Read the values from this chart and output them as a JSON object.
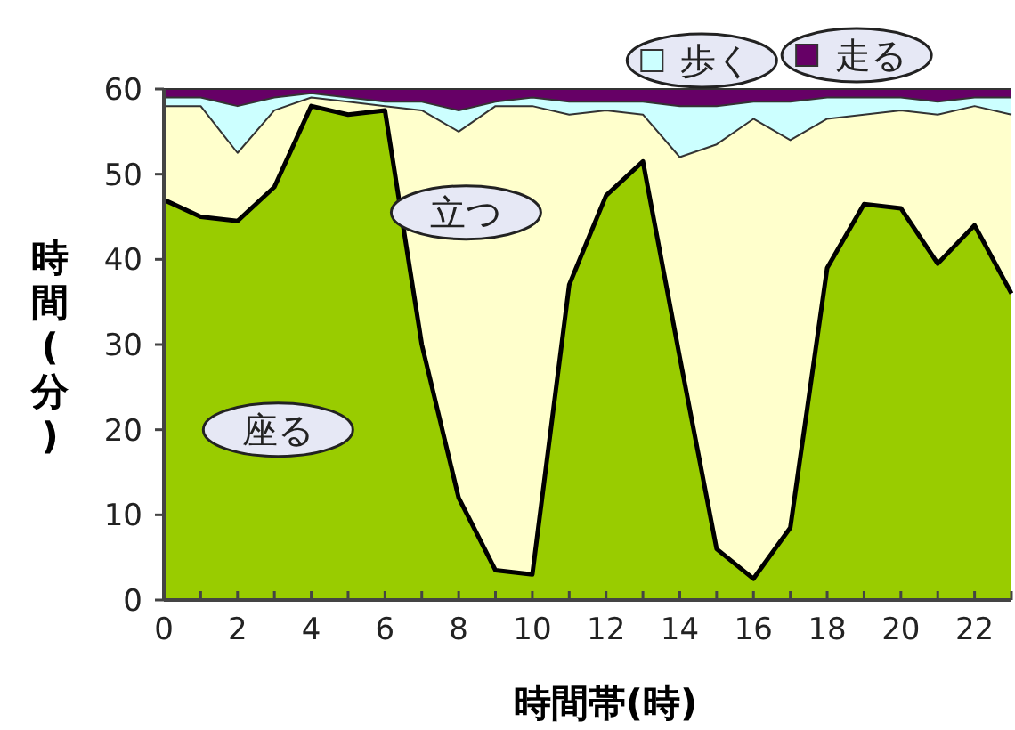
{
  "chart_data": {
    "type": "area",
    "stacked": true,
    "xlabel": "時間帯(時)",
    "ylabel": "時間(分)",
    "x": [
      0,
      1,
      2,
      3,
      4,
      5,
      6,
      7,
      8,
      9,
      10,
      11,
      12,
      13,
      14,
      15,
      16,
      17,
      18,
      19,
      20,
      21,
      22,
      23
    ],
    "xlim": [
      0,
      23
    ],
    "xticks": [
      0,
      {
        "value": 1,
        "label": null
      },
      2,
      {
        "value": 3,
        "label": null
      },
      4,
      {
        "value": 5,
        "label": null
      },
      6,
      {
        "value": 7,
        "label": null
      },
      8,
      {
        "value": 9,
        "label": null
      },
      10,
      {
        "value": 11,
        "label": null
      },
      12,
      {
        "value": 13,
        "label": null
      },
      14,
      {
        "value": 15,
        "label": null
      },
      16,
      {
        "value": 17,
        "label": null
      },
      18,
      {
        "value": 19,
        "label": null
      },
      20,
      {
        "value": 21,
        "label": null
      },
      22,
      {
        "value": 23,
        "label": null
      }
    ],
    "ylim": [
      0,
      60
    ],
    "yticks": [
      0,
      10,
      20,
      30,
      40,
      50,
      60
    ],
    "grid": false,
    "legend": "top right",
    "series": [
      {
        "name": "座る",
        "color": "#99cc00",
        "values": [
          47,
          45,
          44.5,
          48.5,
          58,
          57,
          57.5,
          30,
          12,
          3.5,
          3,
          37,
          47.5,
          51.5,
          28.5,
          6,
          2.5,
          8.5,
          39,
          46.5,
          46,
          39.5,
          44,
          36
        ]
      },
      {
        "name": "立つ",
        "color": "#ffffcc",
        "values": [
          11,
          13,
          8,
          9,
          1,
          1.5,
          0.5,
          27.5,
          43,
          54.5,
          55,
          20,
          10,
          5.5,
          23.5,
          47.5,
          54,
          45.5,
          17.5,
          10.5,
          11.5,
          17.5,
          14,
          21
        ]
      },
      {
        "name": "歩く",
        "color": "#ccffff",
        "values": [
          1,
          1,
          5.5,
          1.5,
          0.5,
          0.5,
          0.5,
          1,
          2.5,
          0.5,
          1,
          1.5,
          1,
          1.5,
          6,
          4.5,
          2,
          4.5,
          2.5,
          2,
          1.5,
          1.5,
          1,
          2
        ]
      },
      {
        "name": "走る",
        "color": "#660066",
        "values": [
          1,
          1,
          2,
          1,
          0.5,
          1,
          1.5,
          1.5,
          2.5,
          1.5,
          1,
          1.5,
          1.5,
          1.5,
          2,
          2,
          1.5,
          1.5,
          1,
          1,
          1,
          1.5,
          1,
          1
        ]
      }
    ]
  }
}
